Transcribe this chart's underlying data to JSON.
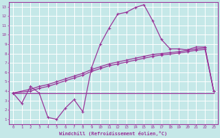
{
  "xlabel": "Windchill (Refroidissement éolien,°C)",
  "background_color": "#c5e8e8",
  "grid_color": "#ffffff",
  "line_color": "#993399",
  "xlim": [
    -0.5,
    23.5
  ],
  "ylim": [
    0.5,
    13.5
  ],
  "xticks": [
    0,
    1,
    2,
    3,
    4,
    5,
    6,
    7,
    8,
    9,
    10,
    11,
    12,
    13,
    14,
    15,
    16,
    17,
    18,
    19,
    20,
    21,
    22,
    23
  ],
  "yticks": [
    1,
    2,
    3,
    4,
    5,
    6,
    7,
    8,
    9,
    10,
    11,
    12,
    13
  ],
  "line1_x": [
    0,
    1,
    2,
    3,
    4,
    5,
    6,
    7,
    8,
    9,
    10,
    11,
    12,
    13,
    14,
    15,
    16,
    17,
    18,
    19,
    20,
    21,
    22,
    23
  ],
  "line1_y": [
    3.8,
    2.7,
    4.5,
    3.8,
    1.2,
    1.0,
    2.2,
    3.1,
    1.8,
    6.5,
    9.0,
    10.7,
    12.2,
    12.4,
    12.9,
    13.2,
    11.5,
    9.5,
    8.5,
    8.5,
    8.4,
    8.7,
    8.7,
    4.0
  ],
  "line2_x": [
    0,
    2,
    3,
    4,
    5,
    6,
    7,
    8,
    9,
    10,
    11,
    12,
    13,
    14,
    15,
    16,
    17,
    18,
    19,
    20,
    21,
    22,
    23
  ],
  "line2_y": [
    3.8,
    4.2,
    4.5,
    4.7,
    5.0,
    5.3,
    5.6,
    5.9,
    6.3,
    6.6,
    6.9,
    7.1,
    7.3,
    7.5,
    7.7,
    7.9,
    8.0,
    8.1,
    8.2,
    8.35,
    8.5,
    8.6,
    4.0
  ],
  "line3_x": [
    0,
    2,
    3,
    4,
    5,
    6,
    7,
    8,
    9,
    10,
    11,
    12,
    13,
    14,
    15,
    16,
    17,
    18,
    19,
    20,
    21,
    22,
    23
  ],
  "line3_y": [
    3.8,
    4.0,
    4.3,
    4.5,
    4.8,
    5.1,
    5.4,
    5.7,
    6.1,
    6.4,
    6.7,
    6.9,
    7.1,
    7.3,
    7.5,
    7.7,
    7.85,
    7.95,
    8.05,
    8.2,
    8.35,
    8.45,
    4.0
  ],
  "line4_x": [
    0,
    1,
    2,
    3,
    4,
    5,
    6,
    7,
    8,
    9,
    10,
    11,
    12,
    13,
    14,
    15,
    16,
    17,
    18,
    19,
    20,
    21,
    22,
    23
  ],
  "line4_y": [
    3.8,
    3.8,
    3.8,
    3.8,
    3.8,
    3.8,
    3.8,
    3.8,
    3.8,
    3.8,
    3.8,
    3.8,
    3.8,
    3.8,
    3.8,
    3.8,
    3.8,
    3.8,
    3.8,
    3.8,
    3.8,
    3.8,
    3.8,
    3.8
  ]
}
